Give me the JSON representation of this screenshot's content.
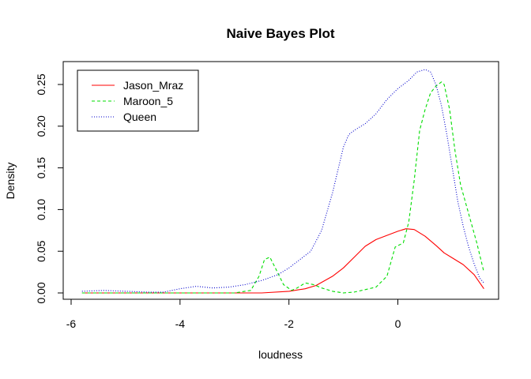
{
  "chart_data": {
    "type": "line",
    "title": "Naive Bayes Plot",
    "xlabel": "loudness",
    "ylabel": "Density",
    "xlim": [
      -6,
      1.6
    ],
    "ylim": [
      0,
      0.27
    ],
    "xticks": [
      -6,
      -4,
      -2,
      0
    ],
    "yticks": [
      0.0,
      0.05,
      0.1,
      0.15,
      0.2,
      0.25
    ],
    "ytick_labels": [
      "0.00",
      "0.05",
      "0.10",
      "0.15",
      "0.20",
      "0.25"
    ],
    "legend_position": "top-left",
    "series": [
      {
        "name": "Jason_Mraz",
        "color": "#ff0000",
        "dash": "solid",
        "x": [
          -5.8,
          -3.0,
          -2.5,
          -2.0,
          -1.7,
          -1.5,
          -1.2,
          -1.0,
          -0.8,
          -0.6,
          -0.4,
          -0.2,
          0.0,
          0.15,
          0.3,
          0.5,
          0.7,
          0.85,
          1.0,
          1.2,
          1.4,
          1.58
        ],
        "y": [
          0.0,
          0.0,
          0.0,
          0.002,
          0.005,
          0.009,
          0.02,
          0.03,
          0.043,
          0.056,
          0.064,
          0.069,
          0.074,
          0.077,
          0.076,
          0.068,
          0.057,
          0.048,
          0.042,
          0.034,
          0.022,
          0.005
        ]
      },
      {
        "name": "Maroon_5",
        "color": "#00dd00",
        "dash": "dashed",
        "x": [
          -5.8,
          -3.0,
          -2.7,
          -2.55,
          -2.45,
          -2.35,
          -2.25,
          -2.1,
          -1.95,
          -1.85,
          -1.7,
          -1.55,
          -1.4,
          -1.2,
          -1.0,
          -0.8,
          -0.6,
          -0.4,
          -0.2,
          -0.05,
          0.1,
          0.2,
          0.3,
          0.4,
          0.5,
          0.6,
          0.7,
          0.8,
          0.85,
          0.95,
          1.05,
          1.15,
          1.3,
          1.45,
          1.58
        ],
        "y": [
          0.0,
          0.0,
          0.003,
          0.02,
          0.04,
          0.043,
          0.03,
          0.01,
          0.003,
          0.006,
          0.012,
          0.01,
          0.006,
          0.002,
          0.0,
          0.001,
          0.004,
          0.007,
          0.02,
          0.055,
          0.06,
          0.085,
          0.135,
          0.195,
          0.22,
          0.24,
          0.248,
          0.253,
          0.25,
          0.22,
          0.17,
          0.13,
          0.095,
          0.06,
          0.025
        ]
      },
      {
        "name": "Queen",
        "color": "#0000cc",
        "dash": "dotted",
        "x": [
          -5.8,
          -5.4,
          -5.0,
          -4.6,
          -4.3,
          -4.0,
          -3.7,
          -3.4,
          -3.1,
          -2.8,
          -2.5,
          -2.2,
          -2.0,
          -1.8,
          -1.6,
          -1.4,
          -1.2,
          -1.0,
          -0.9,
          -0.8,
          -0.6,
          -0.4,
          -0.2,
          0.0,
          0.2,
          0.35,
          0.5,
          0.6,
          0.7,
          0.8,
          0.9,
          1.0,
          1.1,
          1.2,
          1.3,
          1.4,
          1.5,
          1.58
        ],
        "y": [
          0.002,
          0.003,
          0.002,
          0.001,
          0.001,
          0.005,
          0.008,
          0.006,
          0.007,
          0.01,
          0.015,
          0.022,
          0.03,
          0.04,
          0.05,
          0.075,
          0.12,
          0.175,
          0.19,
          0.195,
          0.203,
          0.215,
          0.232,
          0.245,
          0.255,
          0.265,
          0.268,
          0.265,
          0.25,
          0.225,
          0.19,
          0.15,
          0.11,
          0.08,
          0.055,
          0.035,
          0.018,
          0.012
        ]
      }
    ]
  }
}
